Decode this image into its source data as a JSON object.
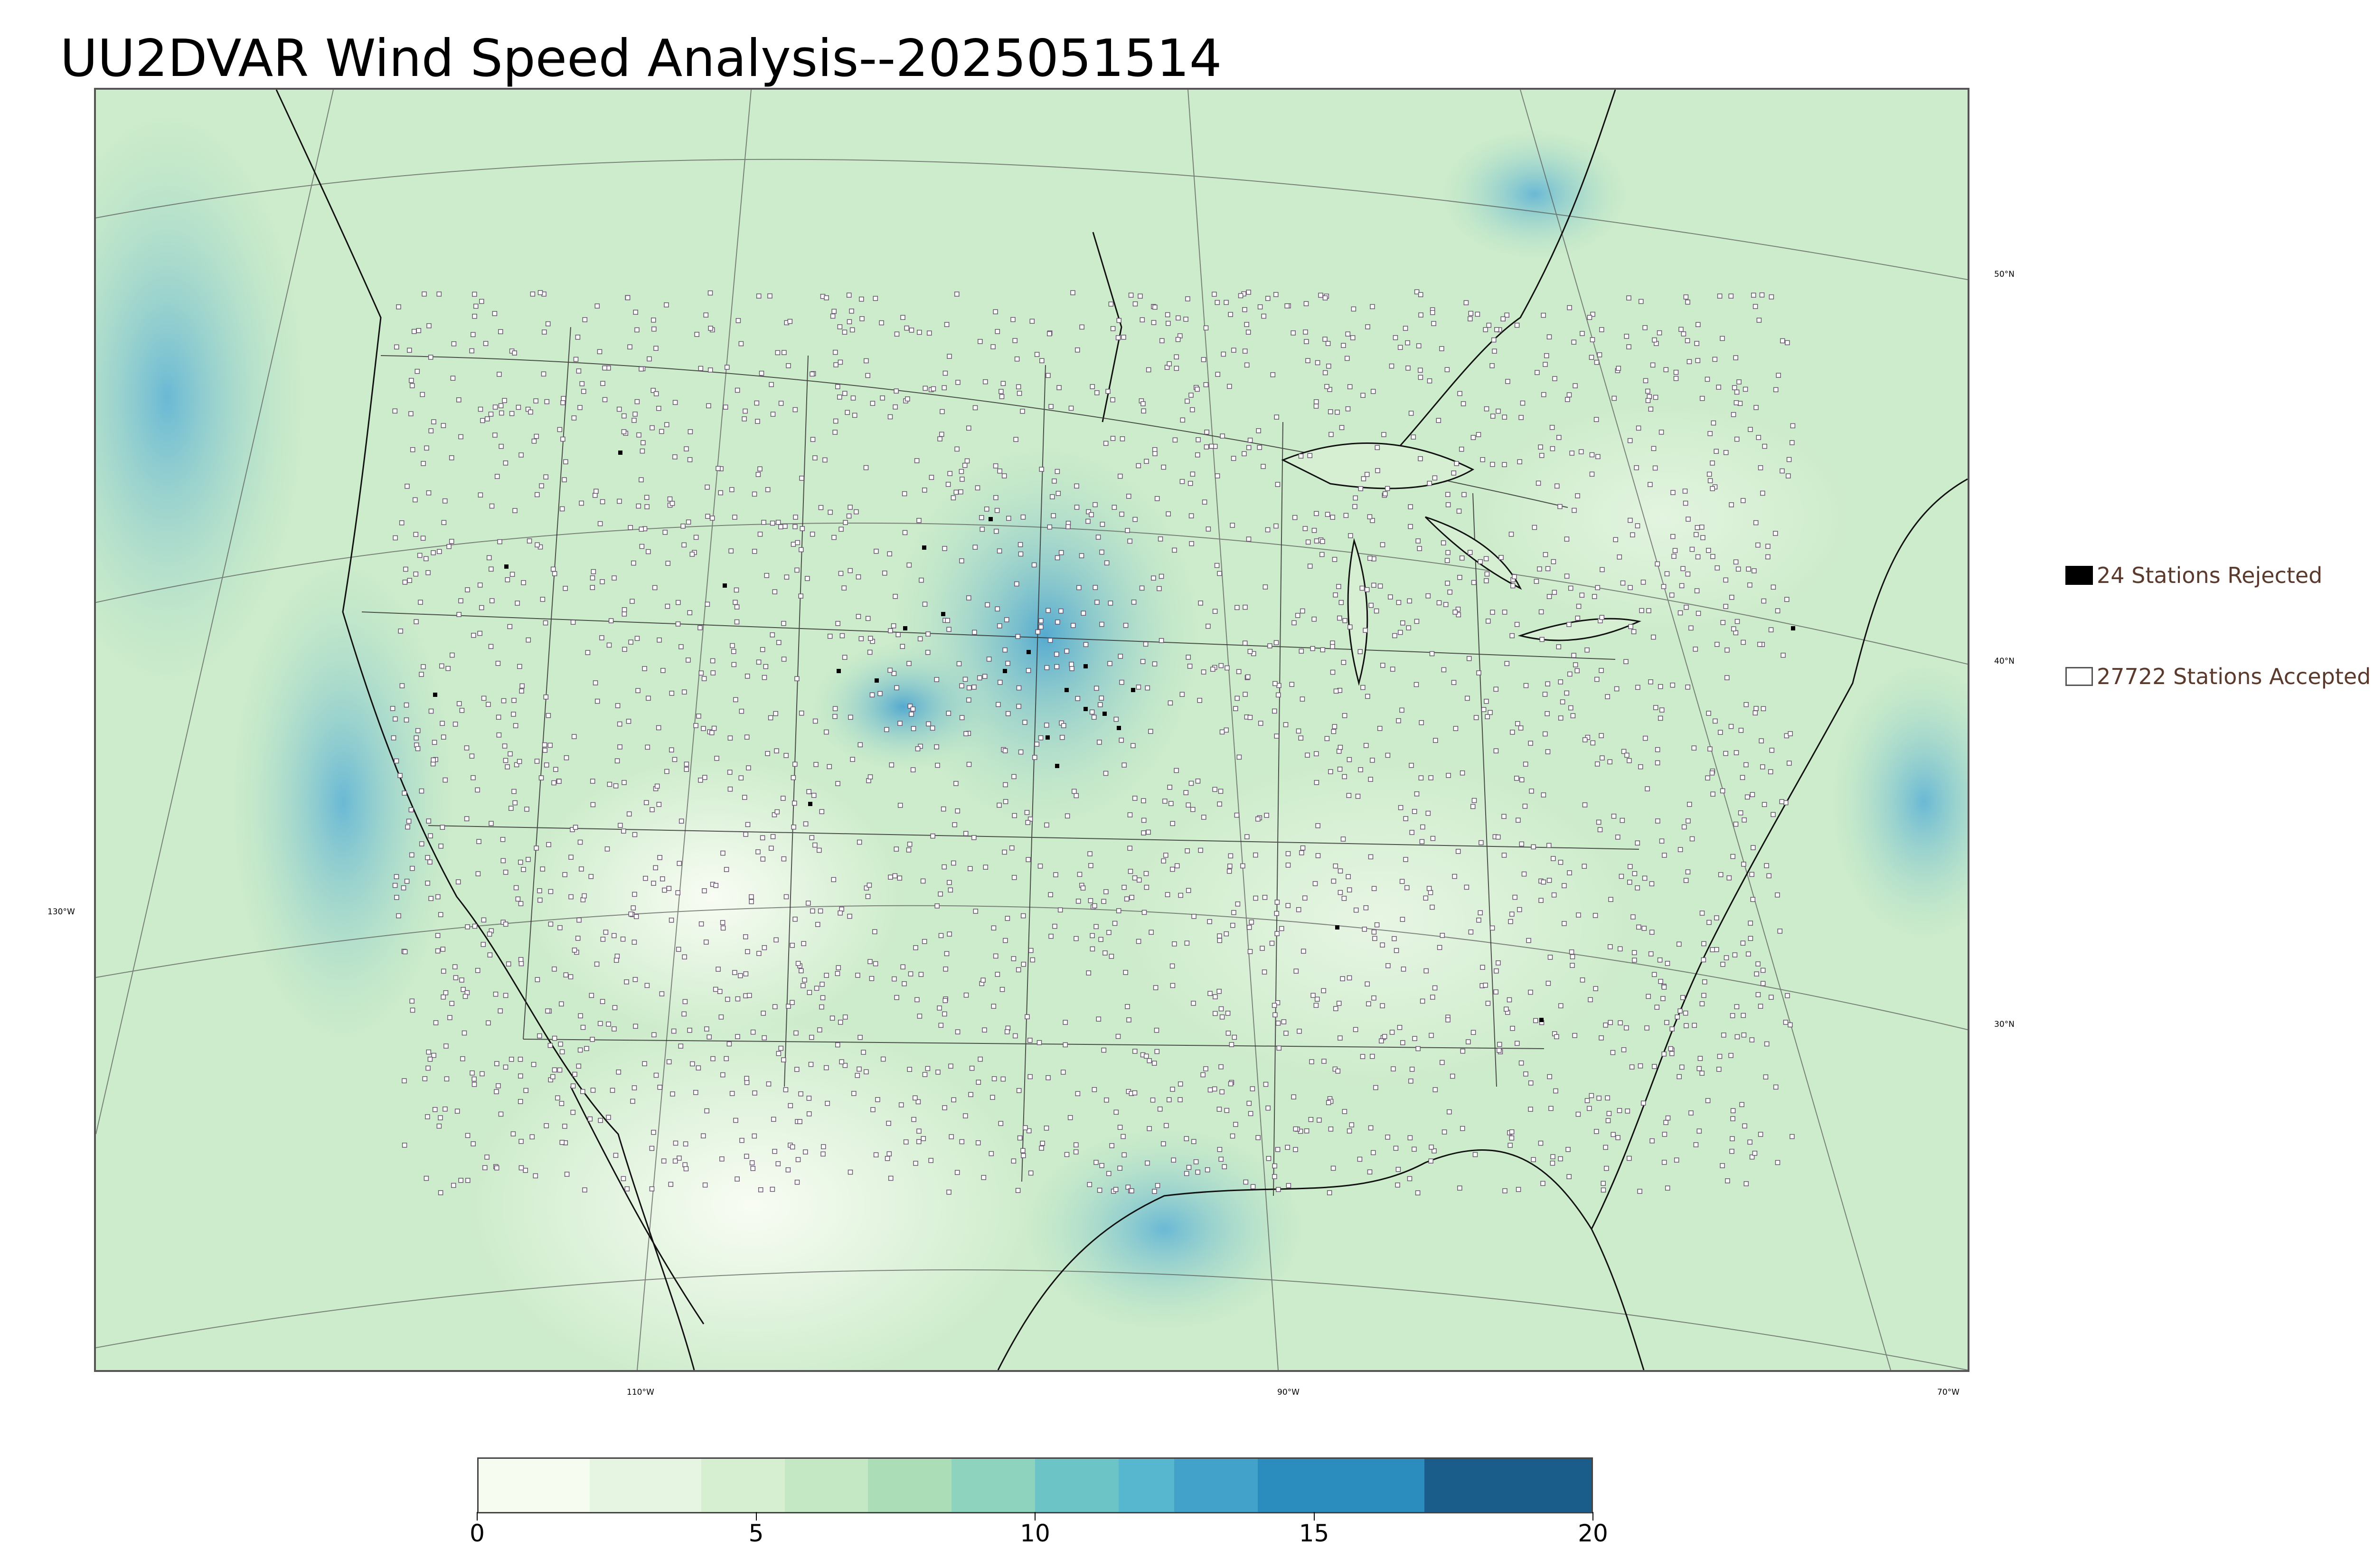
{
  "title": "UU2DVAR Wind Speed Analysis--2025051514",
  "map": {
    "lon_labels": [
      "130°W",
      "110°W",
      "90°W",
      "70°W"
    ],
    "lat_labels": [
      "50°N",
      "40°N",
      "30°N"
    ]
  },
  "legend": {
    "rejected_label": "24 Stations Rejected",
    "accepted_label": "27722 Stations Accepted"
  },
  "colorbar": {
    "min": 0,
    "max": 20,
    "tick_labels": [
      "0",
      "5",
      "10",
      "15",
      "20"
    ],
    "colors": [
      "#f7fcf0",
      "#e6f5e1",
      "#d7efd1",
      "#c4e8c3",
      "#abdeb7",
      "#8dd3bd",
      "#6dc4c6",
      "#56b7cf",
      "#43a2ca",
      "#2b8cbe",
      "#1a5c8a"
    ],
    "bounds": [
      0,
      2,
      4,
      5.5,
      7,
      8.5,
      10,
      11.5,
      12.5,
      14,
      17,
      20
    ]
  },
  "colors": {
    "station_accepted": "#ffffff",
    "station_rejected": "#000000",
    "outline": "#000000"
  }
}
